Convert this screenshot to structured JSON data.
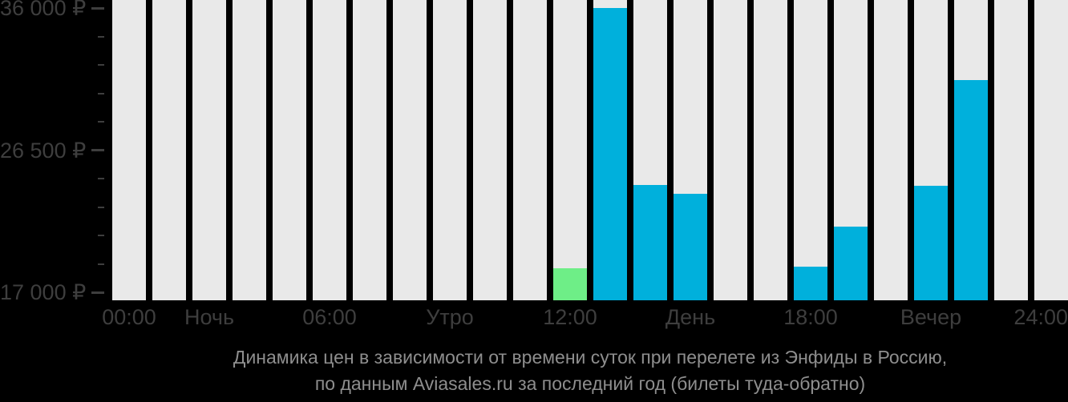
{
  "chart_data": {
    "type": "bar",
    "title": "Динамика цен в зависимости от времени суток при перелете из Энфиды в Россию, по данным Aviasales.ru за последний год (билеты туда-обратно)",
    "title_lines": [
      "Динамика цен в зависимости от времени суток при перелете из Энфиды в Россию,",
      "по данным Aviasales.ru за последний год (билеты туда-обратно)"
    ],
    "x_axis": {
      "labels": [
        {
          "text": "00:00",
          "bar_index": 0
        },
        {
          "text": "Ночь",
          "bar_index": 2
        },
        {
          "text": "06:00",
          "bar_index": 5
        },
        {
          "text": "Утро",
          "bar_index": 8
        },
        {
          "text": "12:00",
          "bar_index": 11
        },
        {
          "text": "День",
          "bar_index": 14
        },
        {
          "text": "18:00",
          "bar_index": 17
        },
        {
          "text": "Вечер",
          "bar_index": 20
        },
        {
          "text": "24:00",
          "bar_index": 23
        }
      ]
    },
    "y_axis": {
      "tick_labels": [
        "36 000 ₽",
        "26 500 ₽",
        "17 000 ₽"
      ],
      "tick_values": [
        36000,
        26500,
        17000
      ],
      "minor_ticks_between": 4,
      "minor_step": 1900,
      "top_value": 36535,
      "baseline_value": 16465,
      "grid": false
    },
    "legend": null,
    "bars": [
      {
        "hour": 0,
        "value": null
      },
      {
        "hour": 1,
        "value": null
      },
      {
        "hour": 2,
        "value": null
      },
      {
        "hour": 3,
        "value": null
      },
      {
        "hour": 4,
        "value": null
      },
      {
        "hour": 5,
        "value": null
      },
      {
        "hour": 6,
        "value": null
      },
      {
        "hour": 7,
        "value": null
      },
      {
        "hour": 8,
        "value": null
      },
      {
        "hour": 9,
        "value": null
      },
      {
        "hour": 10,
        "value": null
      },
      {
        "hour": 11,
        "value": 18600,
        "color": "green"
      },
      {
        "hour": 12,
        "value": 36000,
        "color": "cyan"
      },
      {
        "hour": 13,
        "value": 24200,
        "color": "cyan"
      },
      {
        "hour": 14,
        "value": 23600,
        "color": "cyan"
      },
      {
        "hour": 15,
        "value": null
      },
      {
        "hour": 16,
        "value": null
      },
      {
        "hour": 17,
        "value": 18700,
        "color": "cyan"
      },
      {
        "hour": 18,
        "value": 21400,
        "color": "cyan"
      },
      {
        "hour": 19,
        "value": null
      },
      {
        "hour": 20,
        "value": 24100,
        "color": "cyan"
      },
      {
        "hour": 21,
        "value": 31200,
        "color": "cyan"
      },
      {
        "hour": 22,
        "value": null
      },
      {
        "hour": 23,
        "value": null
      }
    ],
    "colors": {
      "background": "#000000",
      "bar_background": "#E9E9E9",
      "cyan": "#00B0DC",
      "green": "#6EEE87",
      "axis_text": "#3E3E3E",
      "caption_text": "#8E8E8E"
    }
  }
}
